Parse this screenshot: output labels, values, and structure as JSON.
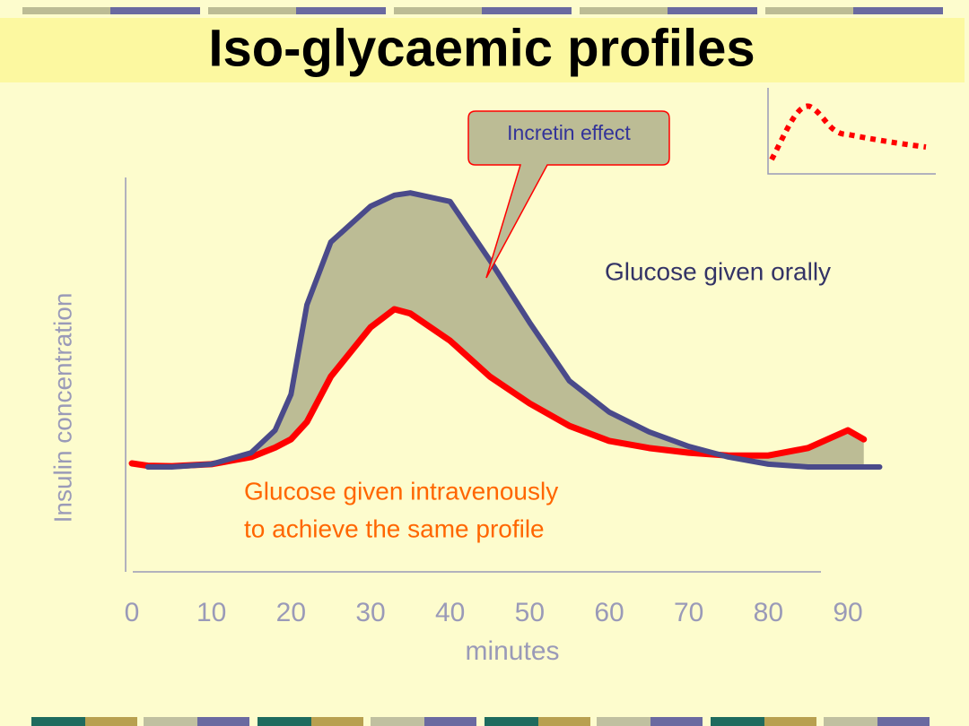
{
  "chart_data": {
    "type": "line",
    "title": "Iso-glycaemic profiles",
    "x_label": "minutes",
    "y_label": "Insulin concentration",
    "annotations": [
      "Incretin effect",
      "to achieve the same profile"
    ],
    "x": [
      0,
      2,
      5,
      10,
      15,
      18,
      20,
      22,
      25,
      30,
      33,
      35,
      40,
      45,
      50,
      55,
      60,
      65,
      70,
      75,
      80,
      85,
      90,
      92,
      94
    ],
    "series": [
      {
        "name": "Glucose given orally",
        "color": "#4a4a8a",
        "values": [
          null,
          26.6,
          26.6,
          27.3,
          30.2,
          35.9,
          45,
          67.7,
          83.6,
          92.7,
          95.5,
          96.1,
          93.9,
          79,
          63.2,
          48.4,
          40.5,
          35.5,
          31.8,
          29.1,
          27.3,
          26.6,
          26.6,
          26.6,
          26.6
        ]
      },
      {
        "name": "Glucose given intravenously",
        "color": "#ff0000",
        "values": [
          27.5,
          26.9,
          26.8,
          27.3,
          29.1,
          31.5,
          33.6,
          38,
          49.5,
          62,
          66.6,
          65.5,
          58.6,
          49.5,
          42.7,
          37,
          33.2,
          31.4,
          30.2,
          29.5,
          29.5,
          31.4,
          35.9,
          33.6,
          null
        ]
      }
    ],
    "xlim": [
      0,
      90
    ],
    "xticks": [
      0,
      10,
      20,
      30,
      40,
      50,
      60,
      70,
      80,
      90
    ],
    "ylim": [
      0,
      100
    ],
    "grid": false
  }
}
